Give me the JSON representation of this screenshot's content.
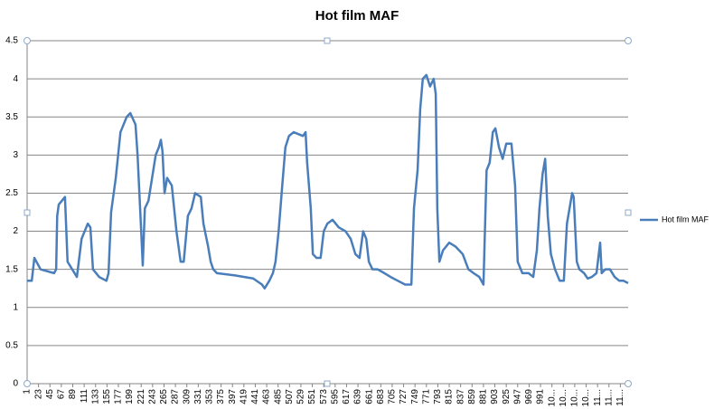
{
  "chart_data": {
    "type": "line",
    "title": "Hot film MAF",
    "x": [
      1,
      10,
      15,
      27,
      53,
      57,
      59,
      62,
      74,
      79,
      88,
      97,
      106,
      118,
      123,
      128,
      140,
      154,
      158,
      163,
      172,
      181,
      193,
      200,
      210,
      214,
      221,
      224,
      228,
      235,
      242,
      249,
      255,
      259,
      262,
      266,
      271,
      280,
      289,
      297,
      303,
      311,
      318,
      325,
      336,
      341,
      350,
      355,
      360,
      367,
      402,
      437,
      454,
      459,
      468,
      475,
      480,
      486,
      493,
      499,
      506,
      515,
      533,
      538,
      541,
      548,
      552,
      559,
      567,
      573,
      580,
      590,
      602,
      615,
      625,
      634,
      642,
      649,
      655,
      660,
      667,
      677,
      690,
      702,
      716,
      730,
      742,
      747,
      754,
      759,
      764,
      771,
      778,
      785,
      789,
      792,
      796,
      803,
      815,
      827,
      841,
      852,
      862,
      873,
      881,
      887,
      893,
      899,
      904,
      911,
      918,
      925,
      935,
      942,
      947,
      956,
      968,
      977,
      984,
      989,
      995,
      1000,
      1005,
      1011,
      1019,
      1028,
      1036,
      1042,
      1047,
      1052,
      1055,
      1061,
      1066,
      1075,
      1082,
      1090,
      1099,
      1106,
      1109,
      1116,
      1125,
      1134,
      1143,
      1151,
      1160
    ],
    "series": [
      {
        "name": "Hot film MAF",
        "color": "#4a7ebb",
        "values": [
          1.35,
          1.35,
          1.65,
          1.5,
          1.45,
          1.5,
          2.2,
          2.35,
          2.45,
          1.6,
          1.5,
          1.4,
          1.9,
          2.1,
          2.05,
          1.5,
          1.4,
          1.35,
          1.45,
          2.25,
          2.7,
          3.3,
          3.5,
          3.55,
          3.4,
          3.0,
          2.0,
          1.55,
          2.3,
          2.4,
          2.7,
          3.0,
          3.1,
          3.2,
          3.05,
          2.5,
          2.7,
          2.6,
          2.0,
          1.6,
          1.6,
          2.2,
          2.3,
          2.5,
          2.45,
          2.1,
          1.8,
          1.6,
          1.5,
          1.45,
          1.42,
          1.38,
          1.3,
          1.25,
          1.35,
          1.45,
          1.6,
          2.0,
          2.6,
          3.1,
          3.25,
          3.3,
          3.25,
          3.3,
          2.9,
          2.3,
          1.7,
          1.65,
          1.65,
          2.0,
          2.1,
          2.15,
          2.05,
          2.0,
          1.9,
          1.7,
          1.65,
          2.0,
          1.9,
          1.6,
          1.5,
          1.5,
          1.45,
          1.4,
          1.35,
          1.3,
          1.3,
          2.3,
          2.8,
          3.6,
          4.0,
          4.05,
          3.9,
          4.0,
          3.8,
          2.3,
          1.6,
          1.75,
          1.85,
          1.8,
          1.7,
          1.5,
          1.45,
          1.4,
          1.3,
          2.8,
          2.9,
          3.3,
          3.35,
          3.1,
          2.95,
          3.15,
          3.15,
          2.6,
          1.6,
          1.45,
          1.45,
          1.4,
          1.75,
          2.3,
          2.75,
          2.95,
          2.2,
          1.7,
          1.5,
          1.35,
          1.35,
          2.1,
          2.3,
          2.5,
          2.45,
          1.6,
          1.5,
          1.45,
          1.38,
          1.4,
          1.45,
          1.85,
          1.45,
          1.5,
          1.5,
          1.4,
          1.35,
          1.35,
          1.32
        ]
      }
    ],
    "xlim": [
      1,
      1160
    ],
    "xticks": [
      1,
      23,
      45,
      67,
      89,
      111,
      133,
      155,
      177,
      199,
      221,
      243,
      265,
      287,
      309,
      331,
      353,
      375,
      397,
      419,
      441,
      463,
      485,
      507,
      529,
      551,
      573,
      595,
      617,
      639,
      661,
      683,
      705,
      727,
      749,
      771,
      793,
      815,
      837,
      859,
      881,
      903,
      925,
      947,
      969,
      991,
      {
        "value": 1013,
        "label": "10..."
      },
      {
        "value": 1035,
        "label": "10..."
      },
      {
        "value": 1057,
        "label": "10..."
      },
      {
        "value": 1079,
        "label": "10..."
      },
      {
        "value": 1101,
        "label": "11..."
      },
      {
        "value": 1123,
        "label": "11..."
      },
      {
        "value": 1145,
        "label": "11..."
      }
    ],
    "ylim": [
      0,
      4.5
    ],
    "yticks": [
      0,
      0.5,
      1,
      1.5,
      2,
      2.5,
      3,
      3.5,
      4,
      4.5
    ],
    "grid": true,
    "legend": "right"
  }
}
